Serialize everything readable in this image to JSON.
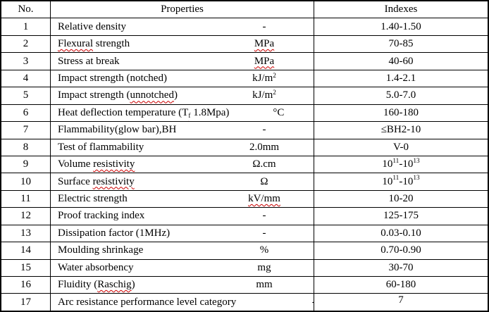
{
  "colors": {
    "border": "#000000",
    "text": "#000000",
    "squiggle": "#cc0000",
    "background": "#ffffff"
  },
  "table": {
    "headers": {
      "no": "No.",
      "properties": "Properties",
      "indexes": "Indexes"
    },
    "rows": [
      {
        "no": "1",
        "property": [
          [
            "Relative density"
          ]
        ],
        "unit": [
          [
            "-"
          ]
        ],
        "index": [
          [
            "1.40-1.50"
          ]
        ]
      },
      {
        "no": "2",
        "property": [
          [
            "Flexural",
            "sq"
          ],
          [
            " strength"
          ]
        ],
        "unit": [
          [
            "MPa",
            "sq"
          ]
        ],
        "index": [
          [
            "70-85"
          ]
        ]
      },
      {
        "no": "3",
        "property": [
          [
            "Stress at break"
          ]
        ],
        "unit": [
          [
            "MPa",
            "sq"
          ]
        ],
        "index": [
          [
            "40-60"
          ]
        ]
      },
      {
        "no": "4",
        "property": [
          [
            "Impact strength (notched)"
          ]
        ],
        "unit": [
          [
            "kJ/m"
          ],
          [
            "2",
            "sup"
          ]
        ],
        "index": [
          [
            "1.4-2.1"
          ]
        ]
      },
      {
        "no": "5",
        "property": [
          [
            "Impact strength ("
          ],
          [
            "unnotched",
            "sq"
          ],
          [
            ")"
          ]
        ],
        "unit": [
          [
            "kJ/m"
          ],
          [
            "2",
            "sup"
          ]
        ],
        "index": [
          [
            "5.0-7.0"
          ]
        ]
      },
      {
        "no": "6",
        "property": [
          [
            "Heat deflection temperature (T"
          ],
          [
            "f",
            "sub sq"
          ],
          [
            " 1.8Mpa)"
          ]
        ],
        "unit": [
          [
            "°C"
          ]
        ],
        "index": [
          [
            "160-180"
          ]
        ]
      },
      {
        "no": "7",
        "property": [
          [
            "Flammability(glow bar),BH"
          ]
        ],
        "unit": [
          [
            "-"
          ]
        ],
        "index": [
          [
            "≤BH2-10"
          ]
        ]
      },
      {
        "no": "8",
        "property": [
          [
            "Test of flammability"
          ]
        ],
        "unit": [
          [
            "2.0mm"
          ]
        ],
        "index": [
          [
            "V-0"
          ]
        ]
      },
      {
        "no": "9",
        "property": [
          [
            "Volume "
          ],
          [
            "resistivity",
            "sq"
          ]
        ],
        "unit": [
          [
            "Ω.cm"
          ]
        ],
        "index": [
          [
            "10"
          ],
          [
            "11",
            "sup"
          ],
          [
            "-10"
          ],
          [
            "13",
            "sup"
          ]
        ]
      },
      {
        "no": "10",
        "property": [
          [
            "Surface "
          ],
          [
            "resistivity",
            "sq"
          ]
        ],
        "unit": [
          [
            "Ω"
          ]
        ],
        "index": [
          [
            "10"
          ],
          [
            "11",
            "sup"
          ],
          [
            "-10"
          ],
          [
            "13",
            "sup"
          ]
        ]
      },
      {
        "no": "11",
        "property": [
          [
            "Electric strength"
          ]
        ],
        "unit": [
          [
            "kV/mm",
            "sq"
          ]
        ],
        "index": [
          [
            "10-20"
          ]
        ]
      },
      {
        "no": "12",
        "property": [
          [
            "Proof tracking index"
          ]
        ],
        "unit": [
          [
            "-"
          ]
        ],
        "index": [
          [
            "125-175"
          ]
        ]
      },
      {
        "no": "13",
        "property": [
          [
            "Dissipation factor (1MHz)"
          ]
        ],
        "unit": [
          [
            "-"
          ]
        ],
        "index": [
          [
            "0.03-0.10"
          ]
        ]
      },
      {
        "no": "14",
        "property": [
          [
            "Moulding shrinkage"
          ]
        ],
        "unit": [
          [
            "%"
          ]
        ],
        "index": [
          [
            "0.70-0.90"
          ]
        ]
      },
      {
        "no": "15",
        "property": [
          [
            "Water absorbency"
          ]
        ],
        "unit": [
          [
            "mg"
          ]
        ],
        "index": [
          [
            "30-70"
          ]
        ]
      },
      {
        "no": "16",
        "property": [
          [
            "Fluidity ("
          ],
          [
            "Raschig",
            "sq"
          ],
          [
            ")"
          ]
        ],
        "unit": [
          [
            "mm"
          ]
        ],
        "index": [
          [
            "60-180"
          ]
        ]
      },
      {
        "no": "17",
        "property": [
          [
            "Arc resistance performance level category"
          ]
        ],
        "unit": [
          [
            "-"
          ]
        ],
        "index": [
          [
            "7"
          ]
        ],
        "unit_wide": true,
        "index_top": true
      }
    ]
  }
}
